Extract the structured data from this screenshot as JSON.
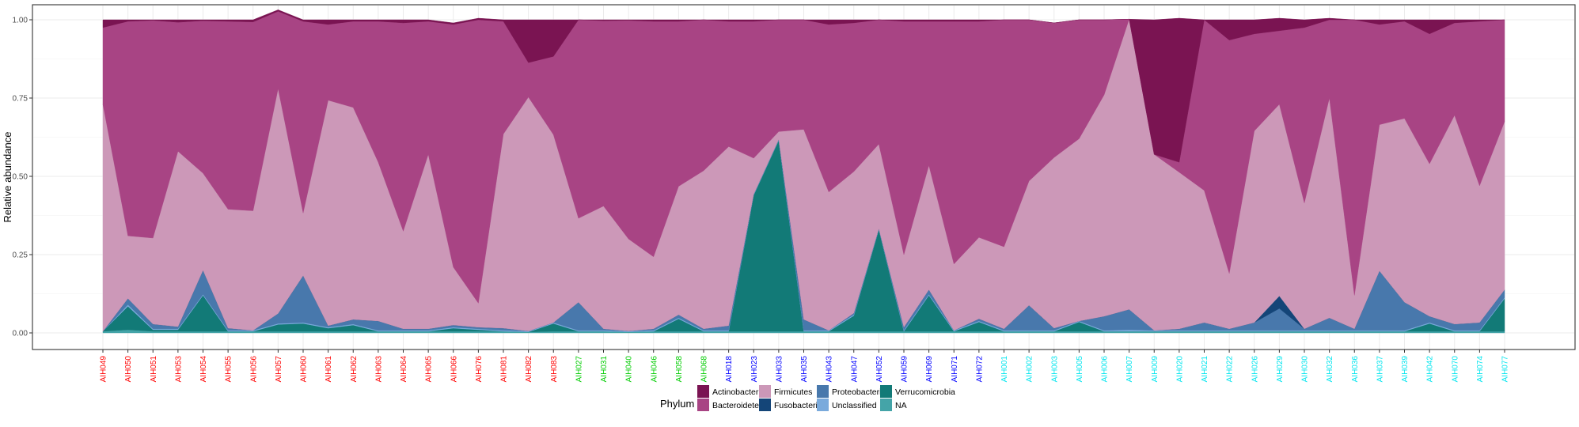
{
  "chart_data": {
    "type": "area",
    "title": "",
    "xlabel": "",
    "ylabel": "Relative abundance",
    "ylim": [
      0,
      1
    ],
    "yticks": [
      "0.00",
      "0.25",
      "0.50",
      "0.75",
      "1.00"
    ],
    "grid": true,
    "legend_position": "bottom",
    "legend_title": "Phylum",
    "categories": [
      "AIH049",
      "AIH050",
      "AIH051",
      "AIH053",
      "AIH054",
      "AIH055",
      "AIH056",
      "AIH057",
      "AIH060",
      "AIH061",
      "AIH062",
      "AIH063",
      "AIH064",
      "AIH065",
      "AIH066",
      "AIH076",
      "AIH081",
      "AIH082",
      "AIH083",
      "AIH027",
      "AIH031",
      "AIH040",
      "AIH046",
      "AIH058",
      "AIH068",
      "AIH018",
      "AIH023",
      "AIH033",
      "AIH035",
      "AIH043",
      "AIH047",
      "AIH052",
      "AIH059",
      "AIH069",
      "AIH071",
      "AIH072",
      "AIH001",
      "AIH002",
      "AIH003",
      "AIH005",
      "AIH006",
      "AIH007",
      "AIH009",
      "AIH020",
      "AIH021",
      "AIH022",
      "AIH026",
      "AIH029",
      "AIH030",
      "AIH032",
      "AIH036",
      "AIH037",
      "AIH039",
      "AIH042",
      "AIH070",
      "AIH074",
      "AIH077"
    ],
    "label_colors": [
      "#ff0000",
      "#ff0000",
      "#ff0000",
      "#ff0000",
      "#ff0000",
      "#ff0000",
      "#ff0000",
      "#ff0000",
      "#ff0000",
      "#ff0000",
      "#ff0000",
      "#ff0000",
      "#ff0000",
      "#ff0000",
      "#ff0000",
      "#ff0000",
      "#ff0000",
      "#ff0000",
      "#ff0000",
      "#00cc00",
      "#00cc00",
      "#00cc00",
      "#00cc00",
      "#00cc00",
      "#00cc00",
      "#0000ff",
      "#0000ff",
      "#0000ff",
      "#0000ff",
      "#0000ff",
      "#0000ff",
      "#0000ff",
      "#0000ff",
      "#0000ff",
      "#0000ff",
      "#0000ff",
      "#00e5ee",
      "#00e5ee",
      "#00e5ee",
      "#00e5ee",
      "#00e5ee",
      "#00e5ee",
      "#00e5ee",
      "#00e5ee",
      "#00e5ee",
      "#00e5ee",
      "#00e5ee",
      "#00e5ee",
      "#00e5ee",
      "#00e5ee",
      "#00e5ee",
      "#00e5ee",
      "#00e5ee",
      "#00e5ee",
      "#00e5ee",
      "#00e5ee",
      "#00e5ee"
    ],
    "series": [
      {
        "name": "NA",
        "color": "#44a4a8",
        "values": [
          0.005,
          0.01,
          0.005,
          0.005,
          0.005,
          0.005,
          0.005,
          0.005,
          0.005,
          0.005,
          0.005,
          0.005,
          0.005,
          0.005,
          0.005,
          0.005,
          0.005,
          0.003,
          0.005,
          0.005,
          0.005,
          0.003,
          0.005,
          0.005,
          0.005,
          0.005,
          0.005,
          0.005,
          0.005,
          0.005,
          0.005,
          0.005,
          0.005,
          0.005,
          0.005,
          0.005,
          0.005,
          0.005,
          0.005,
          0.005,
          0.005,
          0.005,
          0.005,
          0.005,
          0.005,
          0.005,
          0.005,
          0.005,
          0.005,
          0.005,
          0.005,
          0.005,
          0.005,
          0.005,
          0.005,
          0.005,
          0.005
        ]
      },
      {
        "name": "Verrucomicrobia",
        "color": "#127a77",
        "values": [
          0.0,
          0.075,
          0.005,
          0.005,
          0.115,
          0.0,
          0.0,
          0.022,
          0.025,
          0.01,
          0.02,
          0.0,
          0.0,
          0.0,
          0.01,
          0.005,
          0.0,
          0.0,
          0.025,
          0.0,
          0.0,
          0.0,
          0.0,
          0.04,
          0.0,
          0.0,
          0.435,
          0.61,
          0.0,
          0.0,
          0.05,
          0.325,
          0.0,
          0.115,
          0.0,
          0.03,
          0.0,
          0.0,
          0.0,
          0.03,
          0.0,
          0.0,
          0.0,
          0.0,
          0.0,
          0.0,
          0.0,
          0.0,
          0.0,
          0.0,
          0.0,
          0.0,
          0.0,
          0.025,
          0.0,
          0.0,
          0.105
        ]
      },
      {
        "name": "Unclassified",
        "color": "#7aaadc",
        "values": [
          0.0,
          0.005,
          0.003,
          0.003,
          0.003,
          0.003,
          0.003,
          0.003,
          0.003,
          0.003,
          0.003,
          0.003,
          0.003,
          0.003,
          0.003,
          0.003,
          0.003,
          0.003,
          0.003,
          0.003,
          0.003,
          0.003,
          0.003,
          0.003,
          0.003,
          0.003,
          0.003,
          0.003,
          0.003,
          0.003,
          0.003,
          0.003,
          0.003,
          0.003,
          0.003,
          0.003,
          0.003,
          0.003,
          0.003,
          0.003,
          0.003,
          0.005,
          0.003,
          0.003,
          0.003,
          0.003,
          0.003,
          0.003,
          0.003,
          0.003,
          0.003,
          0.003,
          0.003,
          0.003,
          0.003,
          0.003,
          0.003
        ]
      },
      {
        "name": "Proteobacteria",
        "color": "#4878ac",
        "values": [
          0.0,
          0.02,
          0.015,
          0.007,
          0.077,
          0.007,
          0.0,
          0.032,
          0.15,
          0.005,
          0.015,
          0.03,
          0.005,
          0.005,
          0.007,
          0.005,
          0.007,
          0.0,
          0.0,
          0.09,
          0.005,
          0.0,
          0.005,
          0.01,
          0.005,
          0.015,
          0.0,
          0.0,
          0.035,
          0.0,
          0.005,
          0.0,
          0.01,
          0.015,
          0.0,
          0.007,
          0.005,
          0.08,
          0.007,
          0.0,
          0.045,
          0.065,
          0.0,
          0.005,
          0.025,
          0.005,
          0.025,
          0.07,
          0.005,
          0.04,
          0.005,
          0.19,
          0.09,
          0.02,
          0.02,
          0.025,
          0.025
        ]
      },
      {
        "name": "Fusobacteria",
        "color": "#144578",
        "values": [
          0.0,
          0.0,
          0.0,
          0.0,
          0.0,
          0.0,
          0.0,
          0.0,
          0.0,
          0.0,
          0.0,
          0.0,
          0.0,
          0.0,
          0.0,
          0.0,
          0.0,
          0.0,
          0.0,
          0.0,
          0.0,
          0.0,
          0.0,
          0.0,
          0.0,
          0.0,
          0.0,
          0.0,
          0.0,
          0.0,
          0.0,
          0.0,
          0.0,
          0.0,
          0.0,
          0.0,
          0.0,
          0.0,
          0.0,
          0.0,
          0.0,
          0.0,
          0.0,
          0.0,
          0.0,
          0.0,
          0.0,
          0.04,
          0.0,
          0.0,
          0.0,
          0.0,
          0.0,
          0.0,
          0.0,
          0.0,
          0.0
        ]
      },
      {
        "name": "Firmicutes",
        "color": "#cc98b8",
        "values": [
          0.725,
          0.2,
          0.275,
          0.56,
          0.31,
          0.38,
          0.382,
          0.718,
          0.2,
          0.72,
          0.677,
          0.507,
          0.312,
          0.557,
          0.185,
          0.077,
          0.62,
          0.747,
          0.6,
          0.268,
          0.392,
          0.294,
          0.23,
          0.41,
          0.505,
          0.572,
          0.115,
          0.025,
          0.607,
          0.442,
          0.452,
          0.27,
          0.232,
          0.397,
          0.212,
          0.26,
          0.262,
          0.397,
          0.545,
          0.582,
          0.707,
          0.927,
          0.562,
          0.5,
          0.422,
          0.177,
          0.612,
          0.612,
          0.402,
          0.702,
          0.107,
          0.467,
          0.587,
          0.487,
          0.667,
          0.437,
          0.537
        ]
      },
      {
        "name": "Bacteroidetes",
        "color": "#a84484",
        "values": [
          0.245,
          0.685,
          0.695,
          0.412,
          0.487,
          0.6,
          0.603,
          0.247,
          0.612,
          0.242,
          0.275,
          0.45,
          0.665,
          0.425,
          0.775,
          0.905,
          0.36,
          0.11,
          0.25,
          0.634,
          0.592,
          0.698,
          0.752,
          0.527,
          0.482,
          0.4,
          0.437,
          0.357,
          0.35,
          0.535,
          0.475,
          0.397,
          0.745,
          0.46,
          0.775,
          0.69,
          0.725,
          0.515,
          0.43,
          0.38,
          0.24,
          0.0,
          0.0,
          0.032,
          0.545,
          0.745,
          0.31,
          0.235,
          0.56,
          0.25,
          0.88,
          0.32,
          0.31,
          0.415,
          0.295,
          0.525,
          0.325
        ]
      },
      {
        "name": "Actinobacteria",
        "color": "#7a1452",
        "values": [
          0.025,
          0.005,
          0.002,
          0.008,
          0.003,
          0.005,
          0.007,
          0.005,
          0.005,
          0.015,
          0.005,
          0.005,
          0.01,
          0.005,
          0.005,
          0.005,
          0.005,
          0.137,
          0.117,
          0.0,
          0.003,
          0.002,
          0.005,
          0.005,
          0.0,
          0.005,
          0.005,
          0.0,
          0.0,
          0.015,
          0.01,
          0.0,
          0.005,
          0.005,
          0.005,
          0.005,
          0.0,
          0.0,
          0.0,
          0.0,
          0.0,
          0.0,
          0.43,
          0.46,
          0.0,
          0.065,
          0.045,
          0.04,
          0.025,
          0.005,
          0.0,
          0.015,
          0.005,
          0.045,
          0.01,
          0.005,
          0.0
        ]
      }
    ],
    "legend_order": [
      "Actinobacteria",
      "Firmicutes",
      "Proteobacteria",
      "Verrucomicrobia",
      "Bacteroidetes",
      "Fusobacteria",
      "Unclassified",
      "NA"
    ]
  }
}
